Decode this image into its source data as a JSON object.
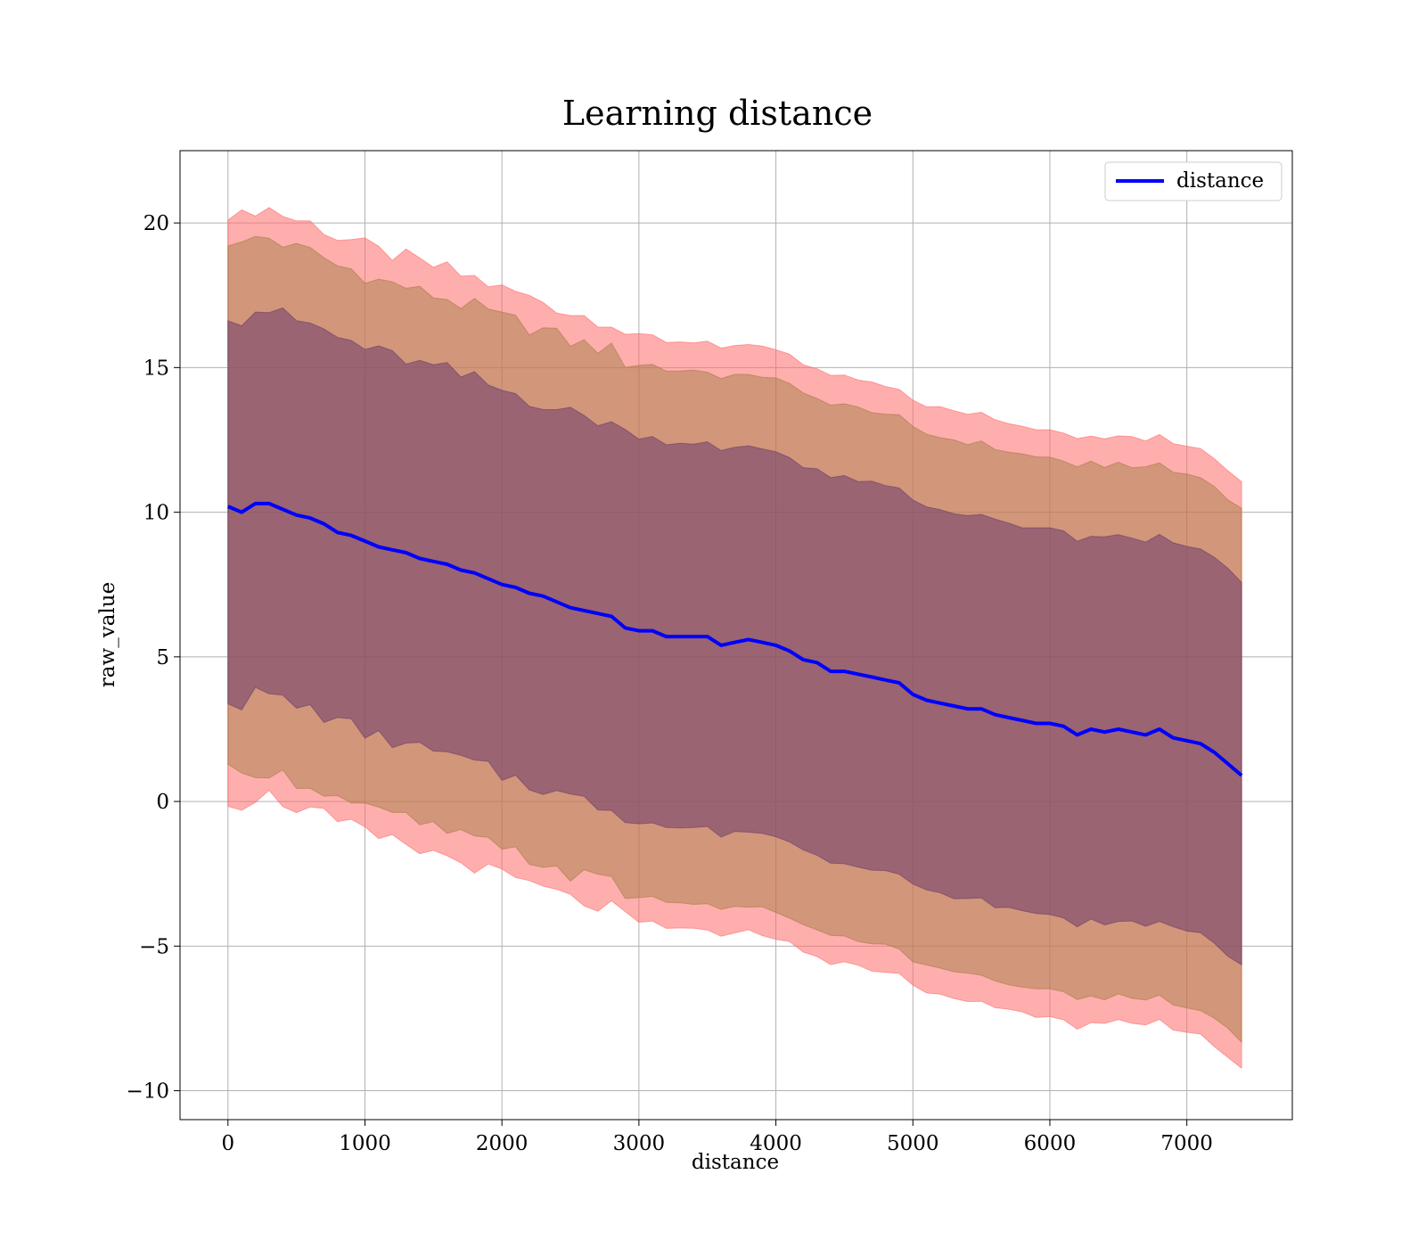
{
  "chart_data": {
    "type": "line",
    "title": "Learning distance",
    "xlabel": "distance",
    "ylabel": "raw_value",
    "xlim": [
      -350,
      7770
    ],
    "ylim": [
      -11.0,
      22.5
    ],
    "xticks": [
      0,
      1000,
      2000,
      3000,
      4000,
      5000,
      6000,
      7000
    ],
    "yticks": [
      -10,
      -5,
      0,
      5,
      10,
      15,
      20
    ],
    "xtick_labels": [
      "0",
      "1000",
      "2000",
      "3000",
      "4000",
      "5000",
      "6000",
      "7000"
    ],
    "ytick_labels": [
      "−10",
      "−5",
      "0",
      "5",
      "10",
      "15",
      "20"
    ],
    "grid": true,
    "legend": {
      "position": "top-right",
      "entries": [
        "distance"
      ]
    },
    "series": [
      {
        "name": "distance",
        "color": "#0000ff",
        "x": [
          0,
          100,
          200,
          300,
          400,
          500,
          600,
          700,
          800,
          900,
          1000,
          1100,
          1200,
          1300,
          1400,
          1500,
          1600,
          1700,
          1800,
          1900,
          2000,
          2100,
          2200,
          2300,
          2400,
          2500,
          2600,
          2700,
          2800,
          2900,
          3000,
          3100,
          3200,
          3300,
          3400,
          3500,
          3600,
          3700,
          3800,
          3900,
          4000,
          4100,
          4200,
          4300,
          4400,
          4500,
          4600,
          4700,
          4800,
          4900,
          5000,
          5100,
          5200,
          5300,
          5400,
          5500,
          5600,
          5700,
          5800,
          5900,
          6000,
          6100,
          6200,
          6300,
          6400,
          6500,
          6600,
          6700,
          6800,
          6900,
          7000,
          7100,
          7200,
          7300,
          7400
        ],
        "y": [
          10.2,
          10.0,
          10.3,
          10.3,
          10.1,
          9.9,
          9.8,
          9.6,
          9.3,
          9.2,
          9.0,
          8.8,
          8.7,
          8.6,
          8.4,
          8.3,
          8.2,
          8.0,
          7.9,
          7.7,
          7.5,
          7.4,
          7.2,
          7.1,
          6.9,
          6.7,
          6.6,
          6.5,
          6.4,
          6.0,
          5.9,
          5.9,
          5.7,
          5.7,
          5.7,
          5.7,
          5.4,
          5.5,
          5.6,
          5.5,
          5.4,
          5.2,
          4.9,
          4.8,
          4.5,
          4.5,
          4.4,
          4.3,
          4.2,
          4.1,
          3.7,
          3.5,
          3.4,
          3.3,
          3.2,
          3.2,
          3.0,
          2.9,
          2.8,
          2.7,
          2.7,
          2.6,
          2.3,
          2.5,
          2.4,
          2.5,
          2.4,
          2.3,
          2.5,
          2.2,
          2.1,
          2.0,
          1.7,
          1.3,
          0.9
        ]
      }
    ],
    "bands": [
      {
        "color": "#ff6b6b",
        "opacity": 0.55,
        "upper_offset": 10.2,
        "lower_offset": -10.1
      },
      {
        "color": "#a67d45",
        "opacity": 0.5,
        "upper_offset": 9.2,
        "lower_offset": -9.2
      },
      {
        "color": "#6b3d6b",
        "opacity": 0.55,
        "upper_offset": 6.7,
        "lower_offset": -6.6
      }
    ]
  }
}
